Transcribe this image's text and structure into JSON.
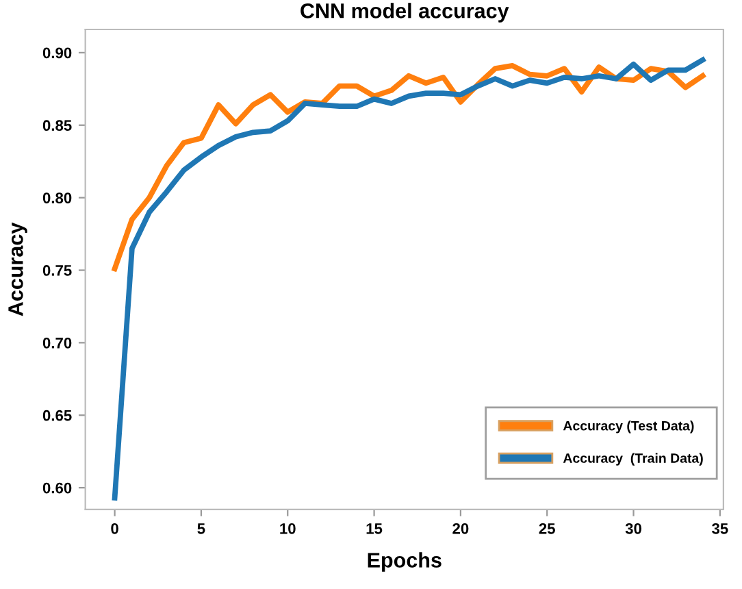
{
  "chart_data": {
    "type": "line",
    "title": "CNN model accuracy",
    "xlabel": "Epochs",
    "ylabel": "Accuracy",
    "x": [
      0,
      1,
      2,
      3,
      4,
      5,
      6,
      7,
      8,
      9,
      10,
      11,
      12,
      13,
      14,
      15,
      16,
      17,
      18,
      19,
      20,
      21,
      22,
      23,
      24,
      25,
      26,
      27,
      28,
      29,
      30,
      31,
      32,
      33,
      34
    ],
    "series": [
      {
        "name": "Accuracy (Test Data)",
        "color": "#ff7f0e",
        "values": [
          0.751,
          0.785,
          0.8,
          0.822,
          0.838,
          0.841,
          0.864,
          0.851,
          0.864,
          0.871,
          0.859,
          0.866,
          0.865,
          0.877,
          0.877,
          0.87,
          0.874,
          0.884,
          0.879,
          0.883,
          0.866,
          0.878,
          0.889,
          0.891,
          0.885,
          0.884,
          0.889,
          0.873,
          0.89,
          0.882,
          0.881,
          0.889,
          0.887,
          0.876,
          0.884
        ]
      },
      {
        "name": "Accuracy  (Train Data)",
        "color": "#1f77b4",
        "values": [
          0.593,
          0.765,
          0.79,
          0.804,
          0.819,
          0.828,
          0.836,
          0.842,
          0.845,
          0.846,
          0.853,
          0.865,
          0.864,
          0.863,
          0.863,
          0.868,
          0.865,
          0.87,
          0.872,
          0.872,
          0.871,
          0.877,
          0.882,
          0.877,
          0.881,
          0.879,
          0.883,
          0.882,
          0.884,
          0.882,
          0.892,
          0.881,
          0.888,
          0.888,
          0.895
        ]
      }
    ],
    "xlim": [
      -1.7,
      35.2
    ],
    "ylim": [
      0.585,
      0.916
    ],
    "xticks": [
      0,
      5,
      10,
      15,
      20,
      25,
      30,
      35
    ],
    "yticks": [
      {
        "value": 0.6,
        "label": "0.60"
      },
      {
        "value": 0.65,
        "label": "0.65"
      },
      {
        "value": 0.7,
        "label": "0.70"
      },
      {
        "value": 0.75,
        "label": "0.75"
      },
      {
        "value": 0.8,
        "label": "0.80"
      },
      {
        "value": 0.85,
        "label": "0.85"
      },
      {
        "value": 0.9,
        "label": "0.90"
      }
    ],
    "grid": false,
    "legend": "bottom right",
    "marker": "none",
    "line_style": "solid"
  }
}
